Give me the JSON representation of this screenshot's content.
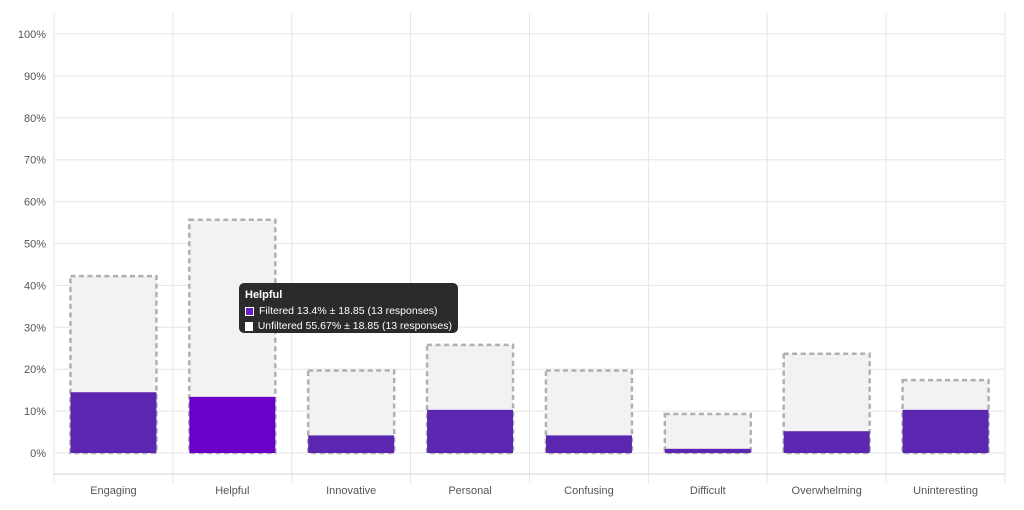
{
  "chart_data": {
    "type": "bar",
    "categories": [
      "Engaging",
      "Helpful",
      "Innovative",
      "Personal",
      "Confusing",
      "Difficult",
      "Overwhelming",
      "Uninteresting"
    ],
    "series": [
      {
        "name": "Filtered",
        "values": [
          14.5,
          13.4,
          4.2,
          10.3,
          4.2,
          1.0,
          5.2,
          10.3
        ]
      },
      {
        "name": "Unfiltered",
        "values": [
          42.2,
          55.67,
          19.7,
          25.8,
          19.7,
          9.3,
          23.7,
          17.4
        ]
      }
    ],
    "ylim": [
      0,
      100
    ],
    "yticks": [
      "0%",
      "10%",
      "20%",
      "30%",
      "40%",
      "50%",
      "60%",
      "70%",
      "80%",
      "90%",
      "100%"
    ],
    "grid": true,
    "highlighted_category": "Helpful",
    "colors": {
      "filtered": "#5b26b0",
      "filtered_highlight": "#6b00c9",
      "unfiltered_fill": "#f2f2f2",
      "unfiltered_border": "#b0b0b0",
      "grid": "#e6e6e6"
    }
  },
  "tooltip": {
    "title": "Helpful",
    "filtered_text": "Filtered 13.4% ± 18.85 (13 responses)",
    "unfiltered_text": "Unfiltered 55.67% ± 18.85 (13 responses)"
  }
}
